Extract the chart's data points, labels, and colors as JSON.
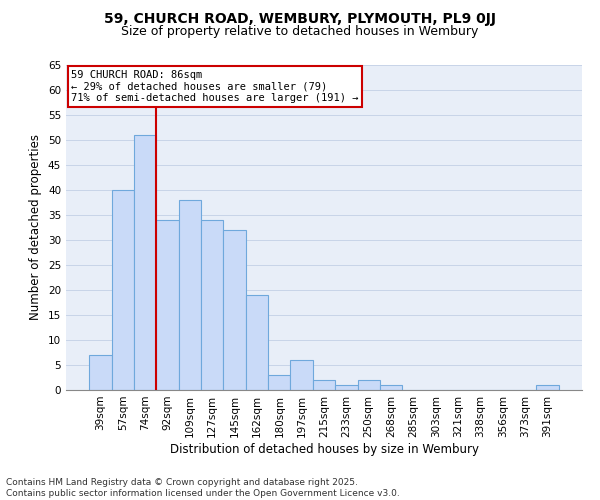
{
  "title": "59, CHURCH ROAD, WEMBURY, PLYMOUTH, PL9 0JJ",
  "subtitle": "Size of property relative to detached houses in Wembury",
  "xlabel": "Distribution of detached houses by size in Wembury",
  "ylabel": "Number of detached properties",
  "categories": [
    "39sqm",
    "57sqm",
    "74sqm",
    "92sqm",
    "109sqm",
    "127sqm",
    "145sqm",
    "162sqm",
    "180sqm",
    "197sqm",
    "215sqm",
    "233sqm",
    "250sqm",
    "268sqm",
    "285sqm",
    "303sqm",
    "321sqm",
    "338sqm",
    "356sqm",
    "373sqm",
    "391sqm"
  ],
  "values": [
    7,
    40,
    51,
    34,
    38,
    34,
    32,
    19,
    3,
    6,
    2,
    1,
    2,
    1,
    0,
    0,
    0,
    0,
    0,
    0,
    1
  ],
  "bar_color": "#c9daf8",
  "bar_edge_color": "#6fa8dc",
  "bar_edge_width": 0.8,
  "red_line_x": 2.5,
  "annotation_line1": "59 CHURCH ROAD: 86sqm",
  "annotation_line2": "← 29% of detached houses are smaller (79)",
  "annotation_line3": "71% of semi-detached houses are larger (191) →",
  "annotation_box_color": "#ffffff",
  "annotation_box_edge_color": "#cc0000",
  "red_line_color": "#cc0000",
  "ylim": [
    0,
    65
  ],
  "yticks": [
    0,
    5,
    10,
    15,
    20,
    25,
    30,
    35,
    40,
    45,
    50,
    55,
    60,
    65
  ],
  "grid_color": "#c8d4e8",
  "background_color": "#e8eef8",
  "footer_line1": "Contains HM Land Registry data © Crown copyright and database right 2025.",
  "footer_line2": "Contains public sector information licensed under the Open Government Licence v3.0.",
  "title_fontsize": 10,
  "subtitle_fontsize": 9,
  "xlabel_fontsize": 8.5,
  "ylabel_fontsize": 8.5,
  "tick_fontsize": 7.5,
  "annotation_fontsize": 7.5,
  "footer_fontsize": 6.5
}
